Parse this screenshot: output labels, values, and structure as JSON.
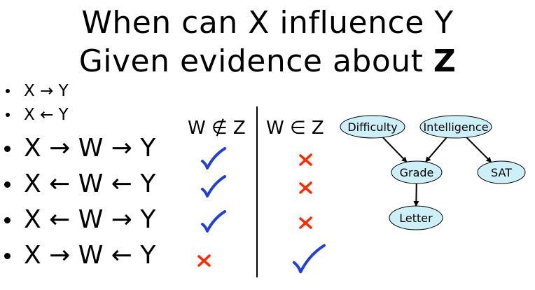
{
  "title": {
    "line1": "When can X influence Y",
    "line2_prefix": "Given evidence about ",
    "line2_bold": "Z"
  },
  "patterns": [
    {
      "text": "X → Y",
      "size": "small"
    },
    {
      "text": "X ← Y",
      "size": "small"
    },
    {
      "text": "X → W → Y",
      "size": "big",
      "not_in_z": "check",
      "in_z": "cross"
    },
    {
      "text": "X ← W ← Y",
      "size": "big",
      "not_in_z": "check",
      "in_z": "cross"
    },
    {
      "text": "X ← W → Y",
      "size": "big",
      "not_in_z": "check",
      "in_z": "cross"
    },
    {
      "text": "X → W ← Y",
      "size": "big",
      "not_in_z": "cross",
      "in_z": "check"
    }
  ],
  "columns": {
    "not_in_z": "W ∉ Z",
    "in_z": "W ∈ Z"
  },
  "colors": {
    "check": "#1f3fe0",
    "cross": "#ff2a00",
    "node_fill": "#cdeff7",
    "node_stroke": "#000000"
  },
  "graph": {
    "nodes": {
      "difficulty": "Difficulty",
      "intelligence": "Intelligence",
      "grade": "Grade",
      "sat": "SAT",
      "letter": "Letter"
    },
    "edges": [
      [
        "difficulty",
        "grade"
      ],
      [
        "intelligence",
        "grade"
      ],
      [
        "intelligence",
        "sat"
      ],
      [
        "grade",
        "letter"
      ]
    ]
  }
}
